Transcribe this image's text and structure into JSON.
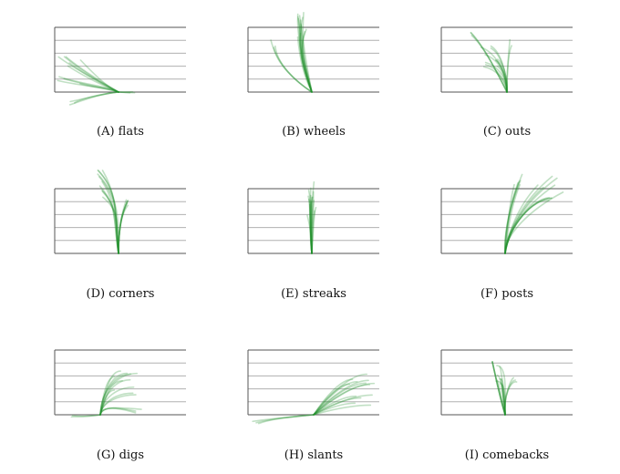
{
  "figure": {
    "panels": [
      {
        "caption": "(A) flats",
        "route": "flats"
      },
      {
        "caption": "(B) wheels",
        "route": "wheels"
      },
      {
        "caption": "(C) outs",
        "route": "outs"
      },
      {
        "caption": "(D) corners",
        "route": "corners"
      },
      {
        "caption": "(E) streaks",
        "route": "streaks"
      },
      {
        "caption": "(F) posts",
        "route": "posts"
      },
      {
        "caption": "(G) digs",
        "route": "digs"
      },
      {
        "caption": "(H) slants",
        "route": "slants"
      },
      {
        "caption": "(I) comebacks",
        "route": "comebacks"
      }
    ],
    "colors": {
      "route": "#1f8f2a",
      "gridline": "#b0b0b0",
      "border": "#555555"
    }
  }
}
